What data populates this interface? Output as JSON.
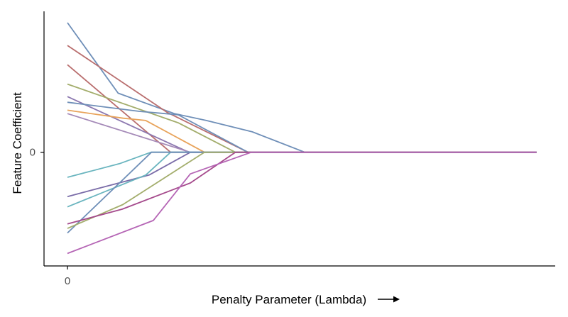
{
  "chart_data": {
    "type": "line",
    "title": "",
    "xlabel": "Penalty Parameter (Lambda)",
    "ylabel": "Feature Coefficient",
    "xlabel_arrow": "right-arrow",
    "xlim": [
      -0.05,
      1.04
    ],
    "ylim": [
      -1.0,
      1.24
    ],
    "x_ticks": [
      {
        "value": 0,
        "label": "0"
      }
    ],
    "y_ticks": [
      {
        "value": 0,
        "label": "0"
      }
    ],
    "grid": false,
    "legend": "none",
    "series": [
      {
        "color": "#6f8fb8",
        "points": [
          [
            0,
            1.14
          ],
          [
            0.108,
            0.52
          ],
          [
            0.228,
            0.34
          ],
          [
            0.296,
            0.28
          ],
          [
            0.394,
            0.18
          ],
          [
            0.506,
            0.0
          ],
          [
            1.0,
            0.0
          ]
        ]
      },
      {
        "color": "#b96e6e",
        "points": [
          [
            0,
            0.94
          ],
          [
            0.213,
            0.35
          ],
          [
            0.385,
            0.0
          ],
          [
            1.0,
            0.0
          ]
        ]
      },
      {
        "color": "#b96e6e",
        "points": [
          [
            0,
            0.77
          ],
          [
            0.22,
            0.0
          ],
          [
            1.0,
            0.0
          ]
        ]
      },
      {
        "color": "#a3ad6c",
        "points": [
          [
            0,
            0.6
          ],
          [
            0.236,
            0.26
          ],
          [
            0.358,
            0.0
          ],
          [
            1.0,
            0.0
          ]
        ]
      },
      {
        "color": "#8c78b0",
        "points": [
          [
            0,
            0.49
          ],
          [
            0.259,
            0.0
          ],
          [
            1.0,
            0.0
          ]
        ]
      },
      {
        "color": "#6f8fb8",
        "points": [
          [
            0,
            0.44
          ],
          [
            0.153,
            0.36
          ],
          [
            0.236,
            0.33
          ],
          [
            0.385,
            0.0
          ],
          [
            1.0,
            0.0
          ]
        ]
      },
      {
        "color": "#e8a35a",
        "points": [
          [
            0,
            0.37
          ],
          [
            0.119,
            0.3
          ],
          [
            0.167,
            0.28
          ],
          [
            0.292,
            0.0
          ],
          [
            1.0,
            0.0
          ]
        ]
      },
      {
        "color": "#a58ab8",
        "points": [
          [
            0,
            0.34
          ],
          [
            0.262,
            0.0
          ],
          [
            1.0,
            0.0
          ]
        ]
      },
      {
        "color": "#6ab5bf",
        "points": [
          [
            0,
            -0.22
          ],
          [
            0.111,
            -0.1
          ],
          [
            0.178,
            0.0
          ],
          [
            1.0,
            0.0
          ]
        ]
      },
      {
        "color": "#7a6ca8",
        "points": [
          [
            0,
            -0.39
          ],
          [
            0.174,
            -0.2
          ],
          [
            0.262,
            0.0
          ],
          [
            1.0,
            0.0
          ]
        ]
      },
      {
        "color": "#6ab5bf",
        "points": [
          [
            0,
            -0.48
          ],
          [
            0.167,
            -0.2
          ],
          [
            0.22,
            0.0
          ],
          [
            1.0,
            0.0
          ]
        ]
      },
      {
        "color": "#6f8fb8",
        "points": [
          [
            0,
            -0.71
          ],
          [
            0.179,
            0.0
          ],
          [
            1.0,
            0.0
          ]
        ]
      },
      {
        "color": "#a3ad6c",
        "points": [
          [
            0,
            -0.67
          ],
          [
            0.118,
            -0.46
          ],
          [
            0.292,
            0.0
          ],
          [
            1.0,
            0.0
          ]
        ]
      },
      {
        "color": "#a54a8c",
        "points": [
          [
            0,
            -0.63
          ],
          [
            0.117,
            -0.5
          ],
          [
            0.262,
            -0.27
          ],
          [
            0.358,
            0.0
          ],
          [
            1.0,
            0.0
          ]
        ]
      },
      {
        "color": "#b565b5",
        "points": [
          [
            0,
            -0.89
          ],
          [
            0.183,
            -0.6
          ],
          [
            0.262,
            -0.19
          ],
          [
            0.392,
            0.0
          ],
          [
            1.0,
            0.0
          ]
        ]
      }
    ]
  }
}
